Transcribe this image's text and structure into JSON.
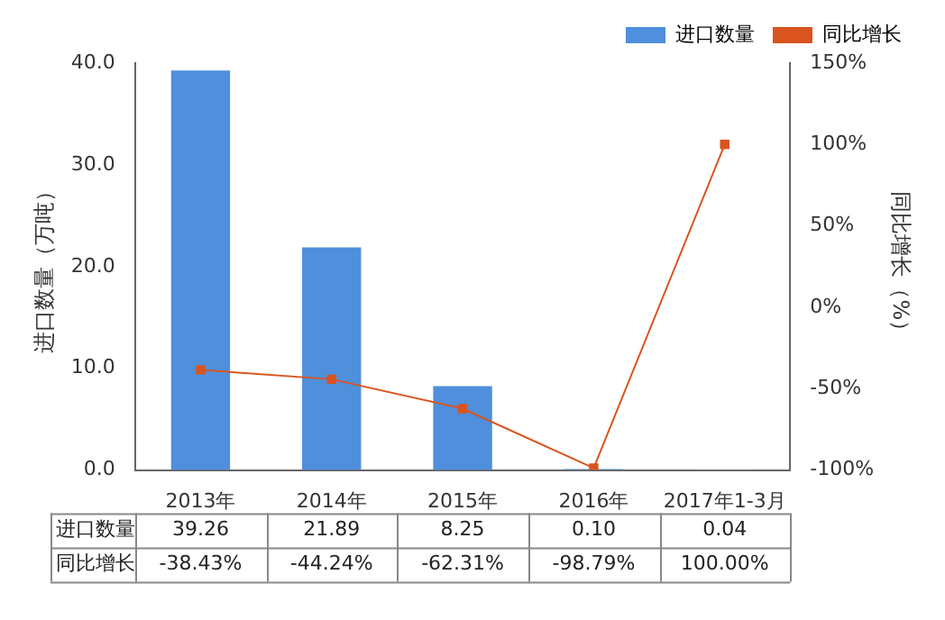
{
  "chart_data": {
    "type": "bar",
    "ylabel": "进口数量（万吨）",
    "y2label": "同比增长（%）",
    "categories": [
      "2013年",
      "2014年",
      "2015年",
      "2016年",
      "2017年1-3月"
    ],
    "series": [
      {
        "name": "进口数量",
        "type": "bar",
        "color": "#4f8fdc",
        "values": [
          39.26,
          21.89,
          8.25,
          0.1,
          0.04
        ],
        "value_labels": [
          "39.26",
          "21.89",
          "8.25",
          "0.10",
          "0.04"
        ]
      },
      {
        "name": "同比增长",
        "type": "line",
        "axis": "y2",
        "color": "#d9541e",
        "marker": "square",
        "values": [
          -38.43,
          -44.24,
          -62.31,
          -98.79,
          100.0
        ],
        "value_labels": [
          "-38.43%",
          "-44.24%",
          "-62.31%",
          "-98.79%",
          "100.00%"
        ]
      }
    ],
    "ylim": [
      0,
      40
    ],
    "yticks": [
      {
        "value": 0,
        "label": "0.0"
      },
      {
        "value": 10,
        "label": "10.0"
      },
      {
        "value": 20,
        "label": "20.0"
      },
      {
        "value": 30,
        "label": "30.0"
      },
      {
        "value": 40,
        "label": "40.0"
      }
    ],
    "y2lim": [
      -100,
      150
    ],
    "y2ticks": [
      {
        "value": -100,
        "label": "-100%"
      },
      {
        "value": -50,
        "label": "-50%"
      },
      {
        "value": 0,
        "label": "0%"
      },
      {
        "value": 50,
        "label": "50%"
      },
      {
        "value": 100,
        "label": "100%"
      },
      {
        "value": 150,
        "label": "150%"
      }
    ],
    "grid": false,
    "legend": "top right"
  }
}
